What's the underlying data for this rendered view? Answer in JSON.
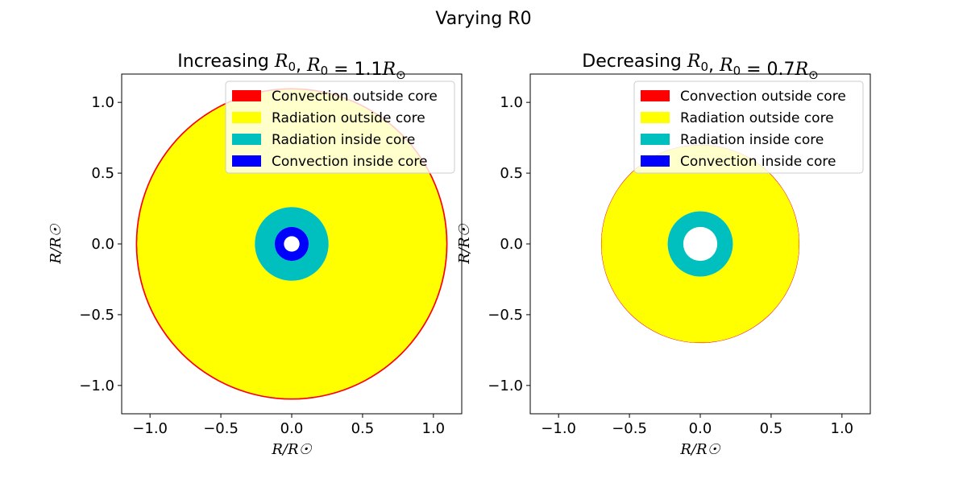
{
  "figure": {
    "suptitle": "Varying R0"
  },
  "chart_data": [
    {
      "type": "area",
      "title": "Increasing R₀, R₀ = 1.1R☉",
      "xlabel": "R/R☉",
      "ylabel": "R/R☉",
      "xlim": [
        -1.2,
        1.2
      ],
      "ylim": [
        -1.2,
        1.2
      ],
      "xticks": [
        -1.0,
        -0.5,
        0.0,
        0.5,
        1.0
      ],
      "yticks": [
        -1.0,
        -0.5,
        0.0,
        0.5,
        1.0
      ],
      "xtick_labels": [
        "−1.0",
        "−0.5",
        "0.0",
        "0.5",
        "1.0"
      ],
      "ytick_labels": [
        "−1.0",
        "−0.5",
        "0.0",
        "0.5",
        "1.0"
      ],
      "grid": false,
      "legend_position": "top-right",
      "legend": [
        {
          "label": "Convection outside core",
          "color": "#ff0000"
        },
        {
          "label": "Radiation outside core",
          "color": "#ffff00"
        },
        {
          "label": "Radiation inside core",
          "color": "#00bfbf"
        },
        {
          "label": "Convection inside core",
          "color": "#0000ff"
        }
      ],
      "rings": [
        {
          "region": "Convection outside core",
          "r_outer": 1.1,
          "r_inner": 1.09,
          "color": "#ff0000"
        },
        {
          "region": "Radiation outside core",
          "r_outer": 1.09,
          "r_inner": 0.26,
          "color": "#ffff00"
        },
        {
          "region": "Radiation inside core",
          "r_outer": 0.26,
          "r_inner": 0.12,
          "color": "#00bfbf"
        },
        {
          "region": "Convection inside core",
          "r_outer": 0.12,
          "r_inner": 0.055,
          "color": "#0000ff"
        }
      ]
    },
    {
      "type": "area",
      "title": "Decreasing R₀, R₀ = 0.7R☉",
      "xlabel": "R/R☉",
      "ylabel": "R/R☉",
      "xlim": [
        -1.2,
        1.2
      ],
      "ylim": [
        -1.2,
        1.2
      ],
      "xticks": [
        -1.0,
        -0.5,
        0.0,
        0.5,
        1.0
      ],
      "yticks": [
        -1.0,
        -0.5,
        0.0,
        0.5,
        1.0
      ],
      "xtick_labels": [
        "−1.0",
        "−0.5",
        "0.0",
        "0.5",
        "1.0"
      ],
      "ytick_labels": [
        "−1.0",
        "−0.5",
        "0.0",
        "0.5",
        "1.0"
      ],
      "grid": false,
      "legend_position": "top-right",
      "legend": [
        {
          "label": "Convection outside core",
          "color": "#ff0000"
        },
        {
          "label": "Radiation outside core",
          "color": "#ffff00"
        },
        {
          "label": "Radiation inside core",
          "color": "#00bfbf"
        },
        {
          "label": "Convection inside core",
          "color": "#0000ff"
        }
      ],
      "rings": [
        {
          "region": "Convection outside core",
          "r_outer": 0.7,
          "r_inner": 0.697,
          "color": "#ff0000"
        },
        {
          "region": "Radiation outside core",
          "r_outer": 0.697,
          "r_inner": 0.23,
          "color": "#ffff00"
        },
        {
          "region": "Radiation inside core",
          "r_outer": 0.23,
          "r_inner": 0.12,
          "color": "#00bfbf"
        }
      ]
    }
  ]
}
